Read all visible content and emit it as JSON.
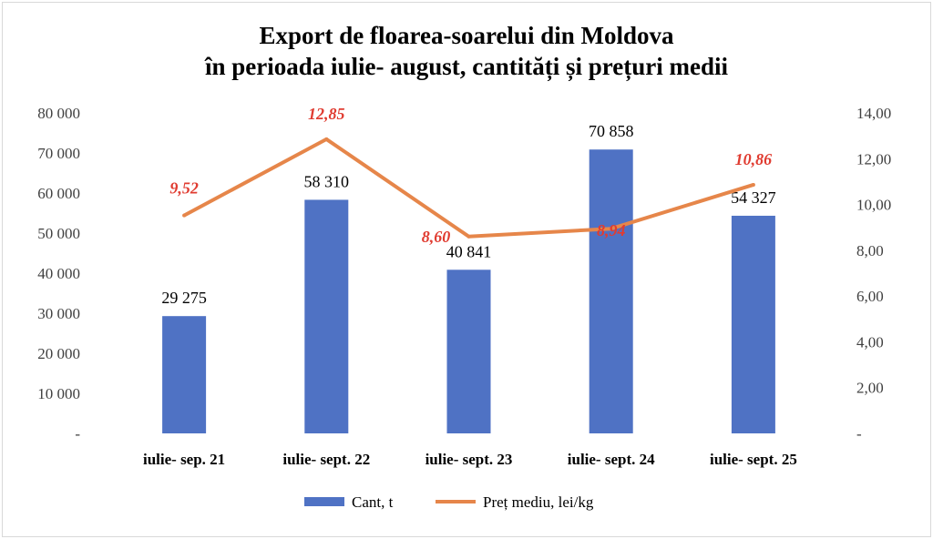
{
  "chart_data": {
    "type": "bar+line",
    "title_line1": "Export de floarea-soarelui  din  Moldova",
    "title_line2": "în perioada iulie- august, cantități și prețuri medii",
    "categories": [
      "iulie- sep. 21",
      "iulie- sept. 22",
      "iulie-  sept. 23",
      "iulie-  sept. 24",
      "iulie-  sept. 25"
    ],
    "series": [
      {
        "name": "Cant, t",
        "type": "bar",
        "axis": "left",
        "color": "#4f72c4",
        "values": [
          29275,
          58310,
          40841,
          70858,
          54327
        ],
        "labels": [
          "29 275",
          "58 310",
          "40 841",
          "70 858",
          "54 327"
        ]
      },
      {
        "name": "Preț mediu, lei/kg",
        "type": "line",
        "axis": "right",
        "color": "#e6864a",
        "values": [
          9.52,
          12.85,
          8.6,
          8.94,
          10.86
        ],
        "labels": [
          "9,52",
          "12,85",
          "8,60",
          "8,94",
          "10,86"
        ]
      }
    ],
    "left_axis": {
      "ylim": [
        0,
        80000
      ],
      "ticks": [
        "-",
        "10 000",
        "20 000",
        "30 000",
        "40 000",
        "50 000",
        "60 000",
        "70 000",
        "80 000"
      ]
    },
    "right_axis": {
      "ylim": [
        0,
        14
      ],
      "ticks": [
        "-",
        "2,00",
        "4,00",
        "6,00",
        "8,00",
        "10,00",
        "12,00",
        "14,00"
      ]
    },
    "grid": false,
    "legend": "bottom"
  }
}
